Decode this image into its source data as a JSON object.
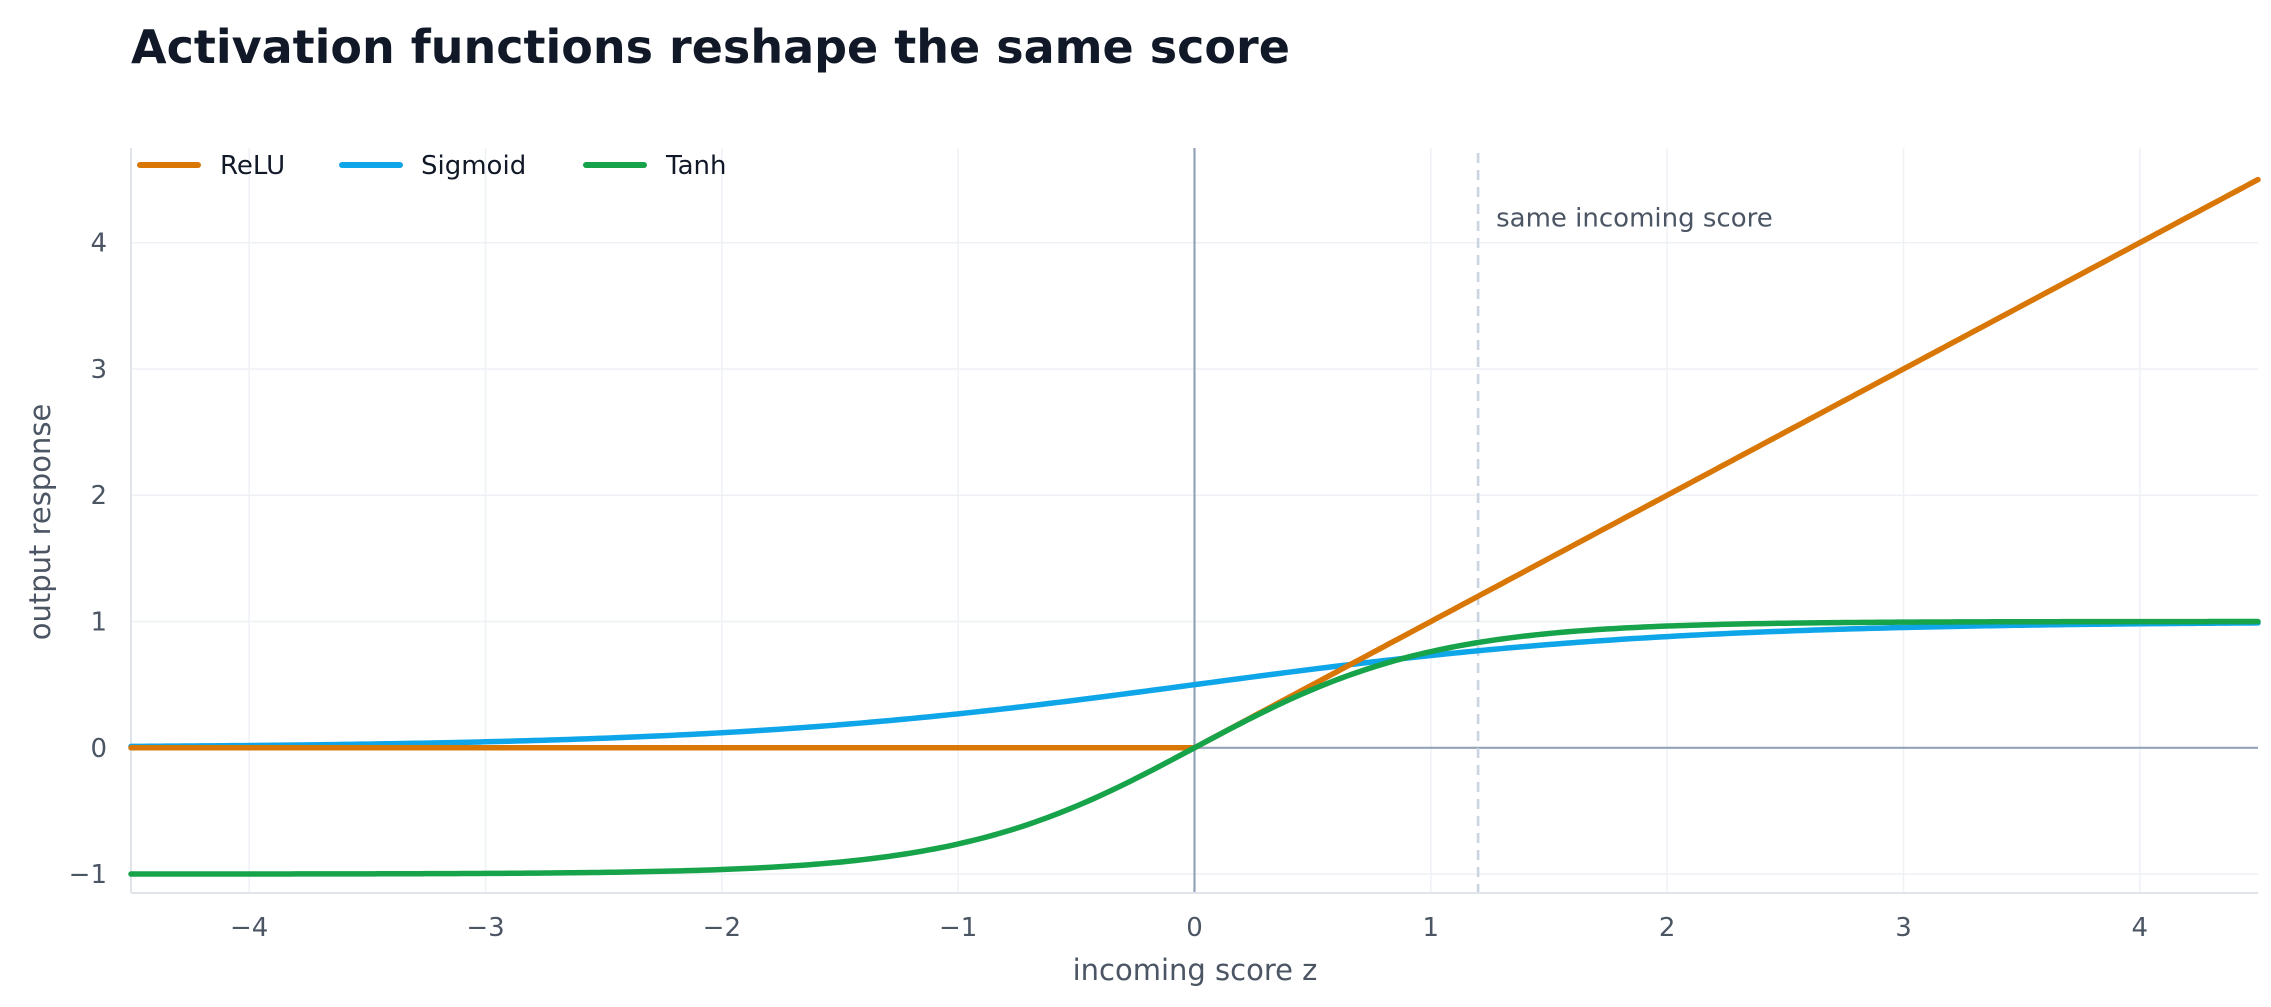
{
  "chart_data": {
    "type": "line",
    "title": "Activation functions reshape the same score",
    "xlabel": "incoming score z",
    "ylabel": "output response",
    "xlim": [
      -4.5,
      4.5
    ],
    "ylim": [
      -1.15,
      4.75
    ],
    "x_ticks": [
      -4,
      -3,
      -2,
      -1,
      0,
      1,
      2,
      3,
      4
    ],
    "y_ticks": [
      -1,
      0,
      1,
      2,
      3,
      4
    ],
    "x_tick_labels": [
      "−4",
      "−3",
      "−2",
      "−1",
      "0",
      "1",
      "2",
      "3",
      "4"
    ],
    "y_tick_labels": [
      "−1",
      "0",
      "1",
      "2",
      "3",
      "4"
    ],
    "grid": true,
    "legend_position": "top-left",
    "series": [
      {
        "name": "ReLU",
        "color": "#d97706",
        "x": [
          -4.5,
          -4,
          -3,
          -2,
          -1,
          0,
          1,
          2,
          3,
          4,
          4.5
        ],
        "y": [
          0,
          0,
          0,
          0,
          0,
          0,
          1,
          2,
          3,
          4,
          4.5
        ]
      },
      {
        "name": "Sigmoid",
        "color": "#0ea5e9",
        "x": [
          -4.5,
          -4,
          -3,
          -2,
          -1,
          0,
          1,
          2,
          3,
          4,
          4.5
        ],
        "y": [
          0.011,
          0.018,
          0.047,
          0.119,
          0.269,
          0.5,
          0.731,
          0.881,
          0.953,
          0.982,
          0.989
        ]
      },
      {
        "name": "Tanh",
        "color": "#16a34a",
        "x": [
          -4.5,
          -4,
          -3,
          -2,
          -1,
          0,
          1,
          2,
          3,
          4,
          4.5
        ],
        "y": [
          -1.0,
          -0.999,
          -0.995,
          -0.964,
          -0.762,
          0,
          0.762,
          0.964,
          0.995,
          0.999,
          1.0
        ]
      }
    ],
    "reference_lines": {
      "vertical_zero_color": "#94a3b8",
      "horizontal_zero_color": "#94a3b8",
      "marker_x": 1.2,
      "marker_color": "#cbd5e1"
    },
    "annotations": [
      {
        "text": "same incoming score",
        "x": 1.2,
        "y": 4.2
      }
    ]
  }
}
